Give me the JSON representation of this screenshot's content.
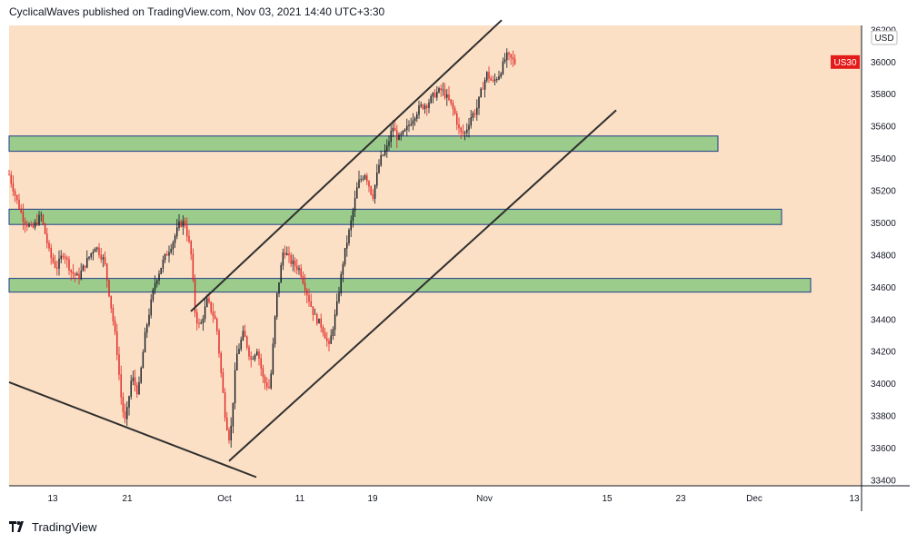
{
  "header": {
    "text": "CyclicalWaves published on TradingView.com, Nov 03, 2021 14:40 UTC+3:30"
  },
  "footer": {
    "brand": "TradingView",
    "logo_icon": "tradingview-logo-icon"
  },
  "colors": {
    "plot_background": "#fbe0c5",
    "candle_up": "#131722",
    "candle_down": "#e02222",
    "zone_fill": "#9bcc8c",
    "zone_border": "#1f3c88",
    "trendline": "#2f2f2f",
    "symbol_badge": "#e41b1b"
  },
  "chart_data": {
    "type": "candlestick",
    "symbol_badge": "US30",
    "price_currency": "USD",
    "x_ticks": [
      "13",
      "21",
      "Oct",
      "11",
      "19",
      "Nov",
      "15",
      "23",
      "Dec",
      "13"
    ],
    "y_ticks": [
      33400,
      33600,
      33800,
      34000,
      34200,
      34400,
      34600,
      34800,
      35000,
      35200,
      35400,
      35600,
      35800,
      36000,
      36200
    ],
    "ylim": [
      33360,
      36250
    ],
    "last_price": 36000,
    "grid": false,
    "price_series_anchors": [
      {
        "x": 10,
        "p": 35300
      },
      {
        "x": 18,
        "p": 35150
      },
      {
        "x": 26,
        "p": 35020
      },
      {
        "x": 35,
        "p": 34960
      },
      {
        "x": 45,
        "p": 35050
      },
      {
        "x": 55,
        "p": 34800
      },
      {
        "x": 62,
        "p": 34720
      },
      {
        "x": 70,
        "p": 34820
      },
      {
        "x": 78,
        "p": 34700
      },
      {
        "x": 86,
        "p": 34660
      },
      {
        "x": 95,
        "p": 34760
      },
      {
        "x": 105,
        "p": 34860
      },
      {
        "x": 115,
        "p": 34760
      },
      {
        "x": 123,
        "p": 34450
      },
      {
        "x": 128,
        "p": 34250
      },
      {
        "x": 134,
        "p": 33870
      },
      {
        "x": 138,
        "p": 33760
      },
      {
        "x": 145,
        "p": 34050
      },
      {
        "x": 152,
        "p": 33940
      },
      {
        "x": 160,
        "p": 34320
      },
      {
        "x": 170,
        "p": 34620
      },
      {
        "x": 180,
        "p": 34770
      },
      {
        "x": 190,
        "p": 34880
      },
      {
        "x": 197,
        "p": 34990
      },
      {
        "x": 203,
        "p": 35010
      },
      {
        "x": 210,
        "p": 34820
      },
      {
        "x": 215,
        "p": 34420
      },
      {
        "x": 220,
        "p": 34350
      },
      {
        "x": 228,
        "p": 34520
      },
      {
        "x": 238,
        "p": 34380
      },
      {
        "x": 244,
        "p": 34020
      },
      {
        "x": 248,
        "p": 33790
      },
      {
        "x": 253,
        "p": 33640
      },
      {
        "x": 260,
        "p": 34170
      },
      {
        "x": 268,
        "p": 34320
      },
      {
        "x": 276,
        "p": 34150
      },
      {
        "x": 283,
        "p": 34220
      },
      {
        "x": 290,
        "p": 34020
      },
      {
        "x": 297,
        "p": 33970
      },
      {
        "x": 304,
        "p": 34520
      },
      {
        "x": 312,
        "p": 34840
      },
      {
        "x": 320,
        "p": 34760
      },
      {
        "x": 330,
        "p": 34710
      },
      {
        "x": 338,
        "p": 34560
      },
      {
        "x": 346,
        "p": 34420
      },
      {
        "x": 354,
        "p": 34360
      },
      {
        "x": 362,
        "p": 34230
      },
      {
        "x": 370,
        "p": 34460
      },
      {
        "x": 378,
        "p": 34780
      },
      {
        "x": 386,
        "p": 35000
      },
      {
        "x": 394,
        "p": 35250
      },
      {
        "x": 402,
        "p": 35310
      },
      {
        "x": 410,
        "p": 35160
      },
      {
        "x": 418,
        "p": 35390
      },
      {
        "x": 426,
        "p": 35470
      },
      {
        "x": 432,
        "p": 35600
      },
      {
        "x": 438,
        "p": 35520
      },
      {
        "x": 446,
        "p": 35570
      },
      {
        "x": 454,
        "p": 35650
      },
      {
        "x": 462,
        "p": 35720
      },
      {
        "x": 470,
        "p": 35740
      },
      {
        "x": 478,
        "p": 35800
      },
      {
        "x": 486,
        "p": 35830
      },
      {
        "x": 494,
        "p": 35760
      },
      {
        "x": 500,
        "p": 35690
      },
      {
        "x": 506,
        "p": 35560
      },
      {
        "x": 512,
        "p": 35560
      },
      {
        "x": 518,
        "p": 35660
      },
      {
        "x": 524,
        "p": 35700
      },
      {
        "x": 530,
        "p": 35830
      },
      {
        "x": 536,
        "p": 35930
      },
      {
        "x": 542,
        "p": 35870
      },
      {
        "x": 550,
        "p": 35930
      },
      {
        "x": 557,
        "p": 36040
      },
      {
        "x": 563,
        "p": 36020
      },
      {
        "x": 568,
        "p": 35990
      }
    ],
    "horizontal_zones": [
      {
        "top": 35540,
        "bottom": 35445,
        "x_end": 790
      },
      {
        "top": 35085,
        "bottom": 34990,
        "x_end": 860
      },
      {
        "top": 34655,
        "bottom": 34570,
        "x_end": 892
      }
    ],
    "trendlines": [
      {
        "from": {
          "x": 210,
          "p": 34450
        },
        "to": {
          "x": 552,
          "p": 36260
        }
      },
      {
        "from": {
          "x": 252,
          "p": 33520
        },
        "to": {
          "x": 678,
          "p": 35700
        }
      },
      {
        "from": {
          "x": 10,
          "p": 34010
        },
        "to": {
          "x": 282,
          "p": 33420
        }
      }
    ]
  }
}
